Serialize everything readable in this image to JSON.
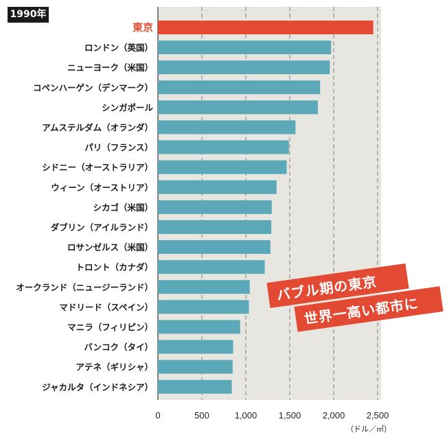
{
  "badge": {
    "year": "1990年"
  },
  "banner": {
    "line1": "バブル期の東京",
    "line2": "世界一高い都市に"
  },
  "colors": {
    "highlight": "#e24a33",
    "bar": "#5aa8b8",
    "plot_bg": "#e8e6e1",
    "grid": "#7d7d7d"
  },
  "chart_data": {
    "type": "bar",
    "orientation": "horizontal",
    "title": "",
    "xlabel": "",
    "ylabel": "",
    "unit": "（ドル／㎡）",
    "xlim": [
      0,
      2500
    ],
    "xticks": [
      0,
      500,
      1000,
      1500,
      2000,
      2500
    ],
    "xtick_labels": [
      "0",
      "500",
      "1,000",
      "1,500",
      "2,000",
      "2,500"
    ],
    "grid": "vertical dashed",
    "highlight_category": "東京",
    "categories": [
      "東京",
      "ロンドン（英国）",
      "ニューヨーク（米国）",
      "コペンハーゲン（デンマーク）",
      "シンガポール",
      "アムステルダム（オランダ）",
      "パリ（フランス）",
      "シドニー（オーストラリア）",
      "ウィーン（オーストリア）",
      "シカゴ（米国）",
      "ダブリン（アイルランド）",
      "ロサンゼルス（米国）",
      "トロント（カナダ）",
      "オークランド（ニュージーランド）",
      "マドリード（スペイン）",
      "マニラ（フィリピン）",
      "バンコク（タイ）",
      "アテネ（ギリシャ）",
      "ジャカルタ（インドネシア）"
    ],
    "values": [
      2450,
      1970,
      1955,
      1845,
      1820,
      1565,
      1490,
      1465,
      1350,
      1295,
      1290,
      1280,
      1215,
      1045,
      1035,
      935,
      855,
      850,
      840
    ]
  }
}
